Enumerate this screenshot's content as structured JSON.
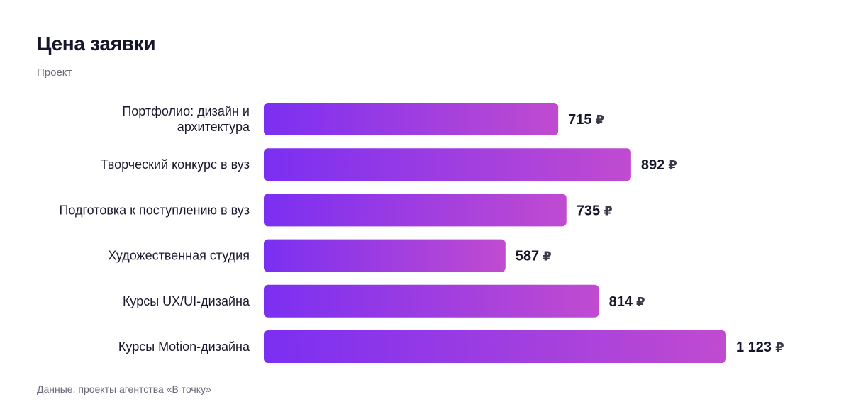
{
  "header": {
    "title": "Цена заявки",
    "subtitle": "Проект"
  },
  "footer": {
    "source": "Данные: проекты агентства «В точку»"
  },
  "colors": {
    "bar_start": "#7B2FF2",
    "bar_end": "#C04BD0"
  },
  "chart_data": {
    "type": "bar",
    "orientation": "horizontal",
    "categories": [
      [
        "Портфолио: дизайн и",
        "архитектура"
      ],
      [
        "Творческий конкурс в вуз"
      ],
      [
        "Подготовка к поступлению в вуз"
      ],
      [
        "Художественная студия"
      ],
      [
        "Курсы UX/UI-дизайна"
      ],
      [
        "Курсы Motion-дизайна"
      ]
    ],
    "values": [
      715,
      892,
      735,
      587,
      814,
      1123
    ],
    "value_labels": [
      "715",
      "892",
      "735",
      "587",
      "814",
      "1 123"
    ],
    "unit": "₽",
    "xlim": [
      0,
      1123
    ],
    "grid": false,
    "legend": "none"
  }
}
